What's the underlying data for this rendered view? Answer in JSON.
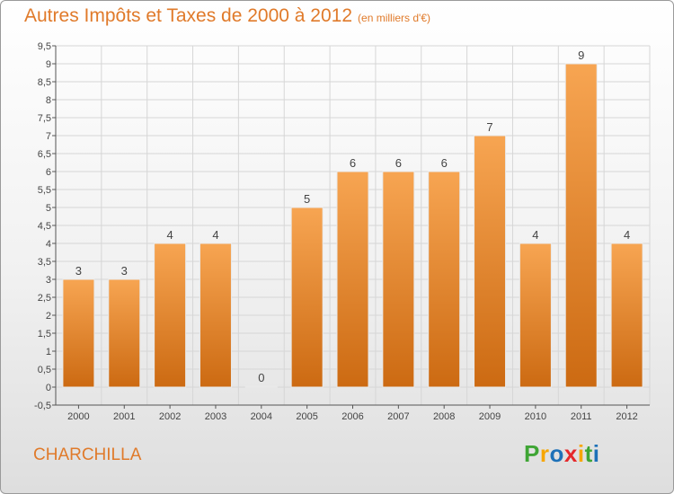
{
  "title": "Autres Impôts et Taxes de 2000 à 2012",
  "unit": "(en milliers d'€)",
  "commune": "CHARCHILLA",
  "logo": {
    "letters": [
      "P",
      "r",
      "o",
      "x",
      "i",
      "t",
      "i"
    ],
    "colors": [
      "#3fa535",
      "#f7a600",
      "#1d71b8",
      "#e5282b",
      "#f7a600",
      "#3fa535",
      "#1d71b8"
    ]
  },
  "colors": {
    "bar_top": "#f7a552",
    "bar_bottom": "#cc6a12",
    "title": "#e07a2a"
  },
  "chart_data": {
    "type": "bar",
    "categories": [
      "2000",
      "2001",
      "2002",
      "2003",
      "2004",
      "2005",
      "2006",
      "2007",
      "2008",
      "2009",
      "2010",
      "2011",
      "2012"
    ],
    "values": [
      3,
      3,
      4,
      4,
      0,
      5,
      6,
      6,
      6,
      7,
      4,
      9,
      4
    ],
    "data_labels": [
      "3",
      "3",
      "4",
      "4",
      "0",
      "5",
      "6",
      "6",
      "6",
      "7",
      "4",
      "9",
      "4"
    ],
    "ylim": [
      -0.5,
      9.5
    ],
    "yticks": [
      "-0,5",
      "0",
      "0,5",
      "1",
      "1,5",
      "2",
      "2,5",
      "3",
      "3,5",
      "4",
      "4,5",
      "5",
      "5,5",
      "6",
      "6,5",
      "7",
      "7,5",
      "8",
      "8,5",
      "9",
      "9,5"
    ],
    "ytick_values": [
      -0.5,
      0,
      0.5,
      1,
      1.5,
      2,
      2.5,
      3,
      3.5,
      4,
      4.5,
      5,
      5.5,
      6,
      6.5,
      7,
      7.5,
      8,
      8.5,
      9,
      9.5
    ],
    "grid": true
  }
}
